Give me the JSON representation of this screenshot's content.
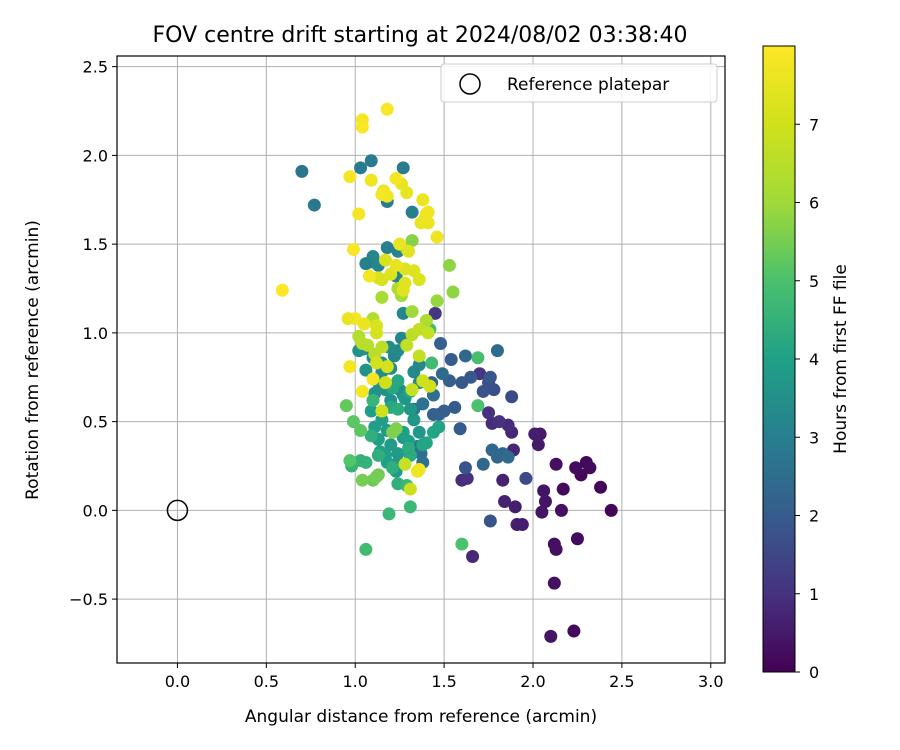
{
  "chart_data": {
    "type": "scatter",
    "title": "FOV centre drift starting at 2024/08/02 03:38:40",
    "xlabel": "Angular distance from reference (arcmin)",
    "ylabel": "Rotation from reference (arcmin)",
    "xlim": [
      -0.34,
      3.08
    ],
    "ylim": [
      -0.86,
      2.56
    ],
    "xticks": [
      0.0,
      0.5,
      1.0,
      1.5,
      2.0,
      2.5,
      3.0
    ],
    "xtick_labels": [
      "0.0",
      "0.5",
      "1.0",
      "1.5",
      "2.0",
      "2.5",
      "3.0"
    ],
    "yticks": [
      -0.5,
      0.0,
      0.5,
      1.0,
      1.5,
      2.0,
      2.5
    ],
    "ytick_labels": [
      "−0.5",
      "0.0",
      "0.5",
      "1.0",
      "1.5",
      "2.0",
      "2.5"
    ],
    "grid": true,
    "legend": {
      "position": "top-right",
      "entries": [
        "Reference platepar"
      ]
    },
    "colorbar": {
      "label": "Hours from first FF file",
      "colormap": "viridis",
      "range": [
        0,
        8
      ],
      "ticks": [
        0,
        1,
        2,
        3,
        4,
        5,
        6,
        7
      ],
      "tick_labels": [
        "0",
        "1",
        "2",
        "3",
        "4",
        "5",
        "6",
        "7"
      ]
    },
    "reference_point": {
      "name": "Reference platepar",
      "x": 0.0,
      "y": 0.0
    },
    "points": [
      [
        2.44,
        0.0,
        0.1
      ],
      [
        2.38,
        0.13,
        0.1
      ],
      [
        2.3,
        0.27,
        0.15
      ],
      [
        2.32,
        0.24,
        0.2
      ],
      [
        2.27,
        0.2,
        0.15
      ],
      [
        2.24,
        0.24,
        0.2
      ],
      [
        2.25,
        -0.16,
        0.2
      ],
      [
        2.23,
        -0.68,
        0.2
      ],
      [
        2.17,
        0.12,
        0.2
      ],
      [
        2.16,
        0.0,
        0.3
      ],
      [
        2.13,
        0.26,
        0.3
      ],
      [
        2.12,
        -0.19,
        0.3
      ],
      [
        2.13,
        -0.22,
        0.3
      ],
      [
        2.12,
        -0.41,
        0.3
      ],
      [
        2.1,
        -0.71,
        0.4
      ],
      [
        2.07,
        0.05,
        0.4
      ],
      [
        2.06,
        0.11,
        0.4
      ],
      [
        2.05,
        -0.01,
        0.4
      ],
      [
        2.03,
        0.37,
        0.5
      ],
      [
        2.04,
        0.43,
        0.5
      ],
      [
        2.01,
        0.43,
        0.6
      ],
      [
        1.94,
        -0.08,
        0.6
      ],
      [
        1.91,
        -0.08,
        0.6
      ],
      [
        1.9,
        0.02,
        0.6
      ],
      [
        1.84,
        0.05,
        0.7
      ],
      [
        1.83,
        0.17,
        0.7
      ],
      [
        1.89,
        0.34,
        0.8
      ],
      [
        1.88,
        0.44,
        0.8
      ],
      [
        1.86,
        0.48,
        0.9
      ],
      [
        1.66,
        -0.26,
        0.8
      ],
      [
        1.6,
        0.17,
        0.9
      ],
      [
        1.63,
        0.18,
        1.0
      ],
      [
        1.77,
        0.49,
        0.9
      ],
      [
        1.81,
        0.5,
        1.0
      ],
      [
        1.75,
        0.55,
        1.0
      ],
      [
        1.7,
        0.77,
        1.1
      ],
      [
        1.45,
        1.11,
        1.1
      ],
      [
        1.88,
        0.64,
        1.6
      ],
      [
        1.96,
        0.18,
        1.6
      ],
      [
        1.78,
        0.68,
        1.7
      ],
      [
        1.75,
        0.72,
        1.7
      ],
      [
        1.62,
        0.24,
        1.8
      ],
      [
        1.76,
        -0.06,
        1.8
      ],
      [
        1.72,
        0.67,
        1.8
      ],
      [
        1.65,
        0.75,
        1.9
      ],
      [
        1.76,
        0.75,
        1.9
      ],
      [
        1.6,
        0.72,
        1.9
      ],
      [
        1.56,
        0.58,
        2.0
      ],
      [
        1.59,
        0.46,
        2.0
      ],
      [
        1.54,
        0.85,
        2.0
      ],
      [
        1.47,
        0.54,
        2.1
      ],
      [
        1.5,
        0.56,
        2.1
      ],
      [
        1.53,
        0.73,
        2.1
      ],
      [
        1.48,
        0.94,
        2.1
      ],
      [
        1.44,
        0.54,
        2.2
      ],
      [
        1.43,
        0.72,
        2.2
      ],
      [
        1.72,
        0.26,
        2.3
      ],
      [
        1.77,
        0.34,
        2.3
      ],
      [
        1.83,
        0.32,
        2.3
      ],
      [
        1.8,
        0.3,
        2.3
      ],
      [
        1.86,
        0.3,
        2.4
      ],
      [
        1.62,
        0.87,
        2.3
      ],
      [
        1.8,
        0.9,
        2.4
      ],
      [
        1.49,
        0.77,
        2.4
      ],
      [
        1.44,
        0.65,
        2.5
      ],
      [
        1.38,
        0.27,
        2.6
      ],
      [
        1.37,
        0.32,
        2.6
      ],
      [
        1.35,
        0.36,
        2.7
      ],
      [
        1.38,
        0.6,
        2.6
      ],
      [
        1.33,
        0.57,
        2.7
      ],
      [
        0.7,
        1.91,
        2.7
      ],
      [
        0.77,
        1.72,
        2.8
      ],
      [
        1.03,
        1.93,
        2.9
      ],
      [
        1.09,
        1.97,
        2.9
      ],
      [
        1.27,
        1.93,
        2.9
      ],
      [
        1.18,
        1.74,
        2.9
      ],
      [
        1.32,
        1.68,
        3.0
      ],
      [
        1.18,
        1.48,
        3.0
      ],
      [
        1.24,
        1.46,
        3.1
      ],
      [
        1.23,
        1.32,
        3.1
      ],
      [
        1.06,
        1.39,
        3.1
      ],
      [
        1.09,
        1.4,
        3.0
      ],
      [
        1.1,
        1.43,
        3.2
      ],
      [
        1.13,
        1.38,
        3.2
      ],
      [
        1.27,
        1.11,
        3.2
      ],
      [
        1.26,
        0.97,
        3.2
      ],
      [
        1.22,
        0.87,
        3.2
      ],
      [
        1.24,
        0.9,
        3.3
      ],
      [
        1.33,
        0.78,
        3.3
      ],
      [
        1.36,
        0.82,
        3.3
      ],
      [
        1.36,
        0.72,
        3.3
      ],
      [
        1.27,
        0.65,
        3.4
      ],
      [
        1.25,
        0.68,
        3.4
      ],
      [
        1.2,
        0.8,
        3.4
      ],
      [
        1.19,
        0.92,
        3.4
      ],
      [
        1.15,
        0.78,
        3.4
      ],
      [
        1.11,
        0.66,
        3.5
      ],
      [
        1.1,
        0.86,
        3.5
      ],
      [
        1.13,
        0.72,
        3.5
      ],
      [
        1.05,
        0.91,
        3.5
      ],
      [
        1.02,
        0.9,
        3.5
      ],
      [
        1.06,
        0.79,
        3.6
      ],
      [
        1.15,
        0.83,
        3.6
      ],
      [
        1.17,
        0.68,
        3.6
      ],
      [
        1.2,
        0.62,
        3.6
      ],
      [
        1.28,
        0.63,
        3.7
      ],
      [
        1.31,
        0.57,
        3.7
      ],
      [
        1.33,
        0.51,
        3.7
      ],
      [
        1.36,
        0.44,
        3.7
      ],
      [
        1.27,
        0.41,
        3.7
      ],
      [
        1.24,
        0.27,
        3.8
      ],
      [
        1.23,
        0.22,
        3.8
      ],
      [
        1.24,
        0.32,
        3.8
      ],
      [
        1.2,
        0.37,
        3.8
      ],
      [
        1.18,
        0.45,
        3.8
      ],
      [
        1.15,
        0.51,
        3.9
      ],
      [
        1.13,
        0.4,
        3.9
      ],
      [
        1.11,
        0.47,
        3.9
      ],
      [
        1.09,
        0.56,
        3.9
      ],
      [
        1.17,
        0.31,
        3.9
      ],
      [
        1.14,
        0.33,
        4.0
      ],
      [
        1.18,
        0.27,
        4.0
      ],
      [
        1.27,
        0.44,
        4.0
      ],
      [
        1.3,
        0.39,
        4.0
      ],
      [
        1.38,
        0.37,
        4.1
      ],
      [
        1.4,
        0.38,
        4.1
      ],
      [
        1.44,
        0.44,
        4.1
      ],
      [
        1.47,
        0.47,
        4.1
      ],
      [
        1.31,
        0.67,
        4.2
      ],
      [
        1.24,
        0.73,
        4.2
      ],
      [
        1.21,
        0.69,
        4.2
      ],
      [
        1.2,
        0.58,
        4.2
      ],
      [
        1.24,
        0.57,
        4.3
      ],
      [
        1.3,
        0.35,
        4.3
      ],
      [
        1.31,
        0.31,
        4.3
      ],
      [
        1.24,
        0.15,
        4.4
      ],
      [
        1.21,
        0.24,
        4.4
      ],
      [
        1.13,
        0.31,
        4.4
      ],
      [
        1.09,
        0.42,
        4.4
      ],
      [
        1.06,
        0.27,
        4.5
      ],
      [
        1.03,
        0.28,
        4.5
      ],
      [
        0.98,
        0.25,
        4.6
      ],
      [
        1.1,
        0.62,
        4.6
      ],
      [
        1.29,
        0.14,
        4.7
      ],
      [
        1.31,
        0.02,
        4.7
      ],
      [
        1.19,
        -0.02,
        4.7
      ],
      [
        1.06,
        -0.22,
        4.8
      ],
      [
        1.43,
        0.83,
        4.8
      ],
      [
        1.42,
        1.02,
        4.9
      ],
      [
        1.69,
        0.86,
        4.9
      ],
      [
        1.69,
        0.59,
        5.0
      ],
      [
        1.6,
        -0.19,
        5.0
      ],
      [
        0.97,
        0.28,
        5.1
      ],
      [
        0.99,
        0.5,
        5.2
      ],
      [
        1.03,
        0.45,
        5.2
      ],
      [
        0.95,
        0.59,
        5.3
      ],
      [
        1.13,
        0.2,
        5.4
      ],
      [
        1.1,
        0.17,
        5.4
      ],
      [
        1.04,
        0.17,
        5.5
      ],
      [
        1.12,
        0.19,
        5.5
      ],
      [
        1.21,
        0.44,
        5.6
      ],
      [
        1.23,
        0.46,
        5.6
      ],
      [
        1.32,
        1.52,
        5.7
      ],
      [
        1.29,
        1.47,
        5.7
      ],
      [
        1.53,
        1.38,
        5.8
      ],
      [
        1.55,
        1.23,
        5.8
      ],
      [
        1.46,
        1.18,
        5.9
      ],
      [
        1.32,
        1.12,
        6.0
      ],
      [
        1.26,
        1.21,
        6.1
      ],
      [
        1.15,
        1.2,
        6.2
      ],
      [
        1.24,
        1.25,
        6.3
      ],
      [
        1.4,
        1.07,
        6.3
      ],
      [
        1.1,
        1.08,
        6.4
      ],
      [
        1.02,
        0.98,
        6.4
      ],
      [
        1.04,
        0.94,
        6.5
      ],
      [
        1.07,
        0.93,
        6.5
      ],
      [
        1.11,
        0.88,
        6.5
      ],
      [
        1.15,
        0.92,
        6.6
      ],
      [
        1.32,
        0.99,
        6.6
      ],
      [
        1.29,
        0.93,
        6.7
      ],
      [
        1.36,
        0.87,
        6.7
      ],
      [
        1.36,
        1.02,
        6.7
      ],
      [
        1.41,
        1.0,
        6.8
      ],
      [
        1.32,
        0.68,
        6.8
      ],
      [
        1.28,
        0.26,
        6.8
      ],
      [
        1.31,
        0.12,
        6.9
      ],
      [
        1.38,
        0.73,
        6.9
      ],
      [
        1.42,
        0.7,
        7.0
      ],
      [
        1.15,
        0.56,
        7.0
      ],
      [
        1.17,
        0.72,
        7.0
      ],
      [
        1.12,
        0.83,
        7.1
      ],
      [
        1.18,
        0.81,
        7.1
      ],
      [
        1.12,
        1.0,
        7.1
      ],
      [
        1.12,
        1.04,
        7.2
      ],
      [
        1.13,
        1.31,
        7.2
      ],
      [
        1.15,
        1.3,
        7.2
      ],
      [
        1.17,
        1.41,
        7.2
      ],
      [
        1.2,
        1.33,
        7.3
      ],
      [
        1.28,
        1.36,
        7.3
      ],
      [
        1.33,
        1.35,
        7.3
      ],
      [
        1.36,
        1.3,
        7.3
      ],
      [
        1.27,
        1.24,
        7.4
      ],
      [
        1.28,
        1.28,
        7.4
      ],
      [
        1.3,
        1.46,
        7.4
      ],
      [
        1.25,
        1.5,
        7.5
      ],
      [
        1.23,
        1.38,
        7.5
      ],
      [
        1.26,
        1.84,
        7.5
      ],
      [
        1.29,
        1.79,
        7.5
      ],
      [
        1.37,
        1.62,
        7.5
      ],
      [
        1.39,
        1.64,
        7.6
      ],
      [
        1.38,
        1.75,
        7.6
      ],
      [
        1.41,
        1.62,
        7.6
      ],
      [
        1.4,
        1.67,
        7.6
      ],
      [
        1.41,
        1.68,
        7.7
      ],
      [
        1.46,
        1.54,
        7.7
      ],
      [
        1.09,
        1.86,
        7.7
      ],
      [
        1.16,
        1.8,
        7.7
      ],
      [
        1.18,
        1.77,
        7.7
      ],
      [
        1.23,
        1.87,
        7.8
      ],
      [
        1.15,
        1.78,
        7.8
      ],
      [
        0.97,
        1.88,
        7.8
      ],
      [
        1.02,
        1.67,
        7.8
      ],
      [
        1.04,
        2.2,
        7.8
      ],
      [
        1.04,
        2.16,
        7.9
      ],
      [
        1.18,
        2.26,
        7.9
      ],
      [
        0.99,
        1.47,
        7.9
      ],
      [
        0.59,
        1.24,
        8.0
      ],
      [
        1.0,
        1.08,
        7.8
      ],
      [
        0.96,
        1.08,
        7.6
      ],
      [
        0.97,
        0.81,
        7.8
      ],
      [
        1.1,
        0.74,
        7.8
      ],
      [
        1.04,
        0.67,
        7.8
      ],
      [
        1.36,
        0.23,
        7.8
      ],
      [
        1.35,
        0.22,
        7.7
      ],
      [
        1.05,
        1.05,
        7.6
      ],
      [
        1.08,
        1.32,
        7.8
      ]
    ]
  }
}
